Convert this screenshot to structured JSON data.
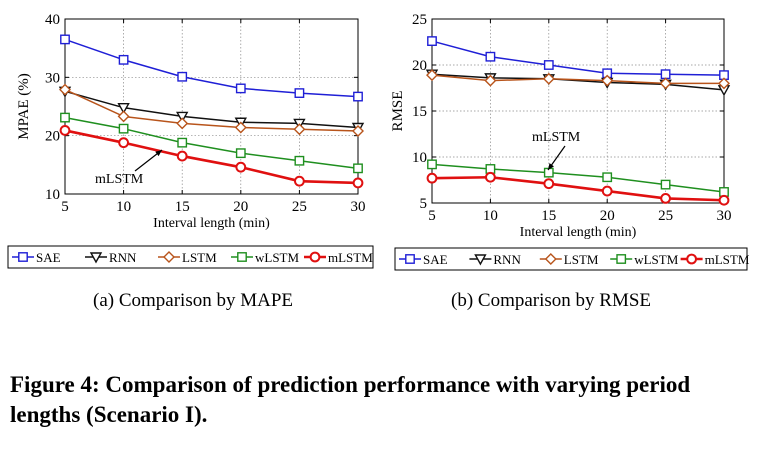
{
  "chart_data": [
    {
      "type": "line",
      "title": "",
      "xlabel": "Interval length (min)",
      "ylabel": "MPAE (%)",
      "x": [
        5,
        10,
        15,
        20,
        25,
        30
      ],
      "xlim": [
        5,
        30
      ],
      "ylim": [
        10,
        40
      ],
      "xticks": [
        "5",
        "10",
        "15",
        "20",
        "25",
        "30"
      ],
      "yticks": [
        "10",
        "20",
        "30",
        "40"
      ],
      "grid": true,
      "legend_position": "bottom",
      "annotation": "mLSTM",
      "series": [
        {
          "name": "SAE",
          "color": "#1f1fd6",
          "marker": "square",
          "values": [
            36.5,
            33.0,
            30.1,
            28.1,
            27.3,
            26.7
          ]
        },
        {
          "name": "RNN",
          "color": "#111111",
          "marker": "triangle-down",
          "values": [
            27.6,
            24.8,
            23.3,
            22.3,
            22.1,
            21.4
          ]
        },
        {
          "name": "LSTM",
          "color": "#b8541b",
          "marker": "diamond",
          "values": [
            27.9,
            23.3,
            22.1,
            21.4,
            21.1,
            20.8
          ]
        },
        {
          "name": "wLSTM",
          "color": "#1f8f1f",
          "marker": "square",
          "values": [
            23.1,
            21.2,
            18.8,
            17.0,
            15.7,
            14.4
          ]
        },
        {
          "name": "mLSTM",
          "color": "#e01010",
          "marker": "circle",
          "values": [
            20.9,
            18.8,
            16.5,
            14.6,
            12.2,
            11.9
          ]
        }
      ]
    },
    {
      "type": "line",
      "title": "",
      "xlabel": "Interval length (min)",
      "ylabel": "RMSE",
      "x": [
        5,
        10,
        15,
        20,
        25,
        30
      ],
      "xlim": [
        5,
        30
      ],
      "ylim": [
        5,
        25
      ],
      "xticks": [
        "5",
        "10",
        "15",
        "20",
        "25",
        "30"
      ],
      "yticks": [
        "5",
        "10",
        "15",
        "20",
        "25"
      ],
      "grid": true,
      "legend_position": "bottom",
      "annotation": "mLSTM",
      "series": [
        {
          "name": "SAE",
          "color": "#1f1fd6",
          "marker": "square",
          "values": [
            22.6,
            20.9,
            20.0,
            19.1,
            19.0,
            18.9
          ]
        },
        {
          "name": "RNN",
          "color": "#111111",
          "marker": "triangle-down",
          "values": [
            19.0,
            18.6,
            18.5,
            18.1,
            17.9,
            17.3
          ]
        },
        {
          "name": "LSTM",
          "color": "#b8541b",
          "marker": "diamond",
          "values": [
            18.9,
            18.3,
            18.5,
            18.3,
            18.0,
            18.0
          ]
        },
        {
          "name": "wLSTM",
          "color": "#1f8f1f",
          "marker": "square",
          "values": [
            9.2,
            8.7,
            8.3,
            7.8,
            7.0,
            6.2
          ]
        },
        {
          "name": "mLSTM",
          "color": "#e01010",
          "marker": "circle",
          "values": [
            7.7,
            7.8,
            7.1,
            6.3,
            5.5,
            5.3
          ]
        }
      ]
    }
  ],
  "captions": {
    "a": "(a)  Comparison by MAPE",
    "b": "(b)  Comparison by RMSE",
    "figure": "Figure 4: Comparison of prediction performance with varying period lengths (Scenario I)."
  }
}
